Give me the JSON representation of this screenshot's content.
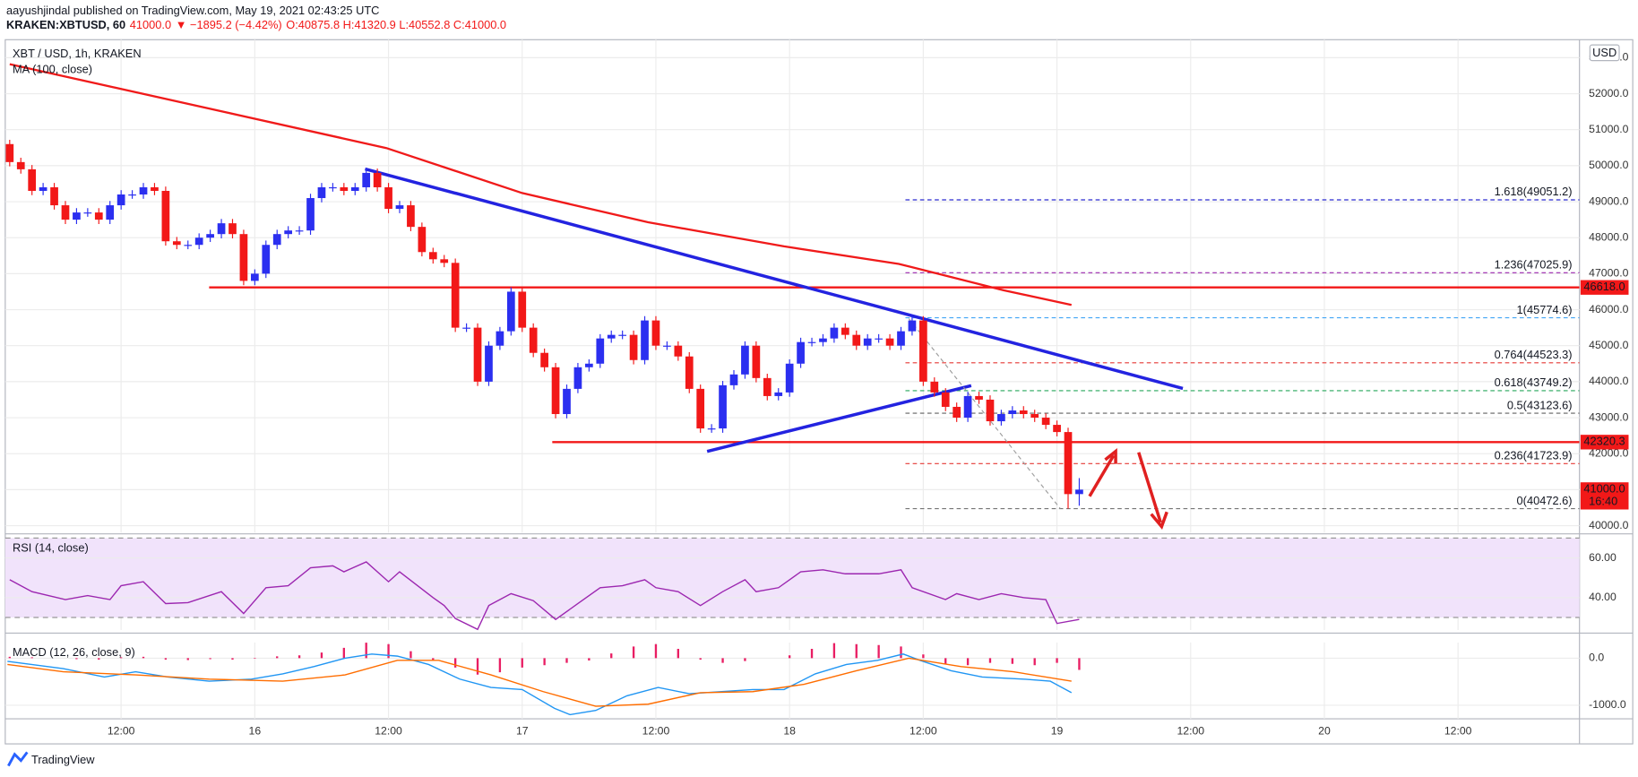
{
  "header": {
    "author_line": "aayushjindal published on TradingView.com, May 19, 2021 02:43:25 UTC",
    "symbol": "KRAKEN:XBTUSD, 60",
    "last": "41000.0",
    "change": "▼ −1895.2 (−4.42%)",
    "ohlc": "O:40875.8 H:41320.9 L:40552.8 C:41000.0"
  },
  "footer": {
    "brand": "TradingView"
  },
  "chart_data": [
    {
      "type": "candlestick",
      "title": "XBT / USD, 1h, KRAKEN",
      "currency": "USD",
      "up_color": "#2b2ff0",
      "down_color": "#f21818",
      "grid": true,
      "xlim": [
        -0.4,
        140.9
      ],
      "xticks": [
        {
          "value": 10,
          "label": "12:00"
        },
        {
          "value": 22,
          "label": "16"
        },
        {
          "value": 34,
          "label": "12:00"
        },
        {
          "value": 46,
          "label": "17"
        },
        {
          "value": 58,
          "label": "12:00"
        },
        {
          "value": 70,
          "label": "18"
        },
        {
          "value": 82,
          "label": "12:00"
        },
        {
          "value": 94,
          "label": "19"
        },
        {
          "value": 106,
          "label": "12:00"
        },
        {
          "value": 118,
          "label": "20"
        },
        {
          "value": 130,
          "label": "12:00"
        }
      ],
      "ylim": [
        39800,
        53500
      ],
      "yticks": [
        {
          "value": 40000,
          "label": "40000.0"
        },
        {
          "value": 41000,
          "label": "41000.0"
        },
        {
          "value": 42000,
          "label": "42000.0"
        },
        {
          "value": 43000,
          "label": "43000.0"
        },
        {
          "value": 44000,
          "label": "44000.0"
        },
        {
          "value": 45000,
          "label": "45000.0"
        },
        {
          "value": 46000,
          "label": "46000.0"
        },
        {
          "value": 47000,
          "label": "47000.0"
        },
        {
          "value": 48000,
          "label": "48000.0"
        },
        {
          "value": 49000,
          "label": "49000.0"
        },
        {
          "value": 50000,
          "label": "50000.0"
        },
        {
          "value": 51000,
          "label": "51000.0"
        },
        {
          "value": 52000,
          "label": "52000.0"
        },
        {
          "value": 53000,
          "label": "53000.0"
        }
      ],
      "candles": [
        [
          50600,
          50720,
          49980,
          50100
        ],
        [
          50100,
          50220,
          49780,
          49900
        ],
        [
          49900,
          50020,
          49180,
          49300
        ],
        [
          49300,
          49520,
          49180,
          49400
        ],
        [
          49400,
          49520,
          48780,
          48900
        ],
        [
          48900,
          49020,
          48380,
          48500
        ],
        [
          48500,
          48820,
          48380,
          48700
        ],
        [
          48700,
          48820,
          48580,
          48700
        ],
        [
          48700,
          48820,
          48380,
          48500
        ],
        [
          48500,
          49020,
          48380,
          48900
        ],
        [
          48900,
          49320,
          48780,
          49200
        ],
        [
          49200,
          49320,
          49080,
          49200
        ],
        [
          49200,
          49520,
          49080,
          49400
        ],
        [
          49400,
          49520,
          49180,
          49300
        ],
        [
          49300,
          49420,
          47780,
          47900
        ],
        [
          47900,
          48020,
          47680,
          47800
        ],
        [
          47800,
          47920,
          47680,
          47800
        ],
        [
          47800,
          48120,
          47680,
          48000
        ],
        [
          48000,
          48220,
          47880,
          48100
        ],
        [
          48100,
          48520,
          47980,
          48400
        ],
        [
          48400,
          48520,
          47980,
          48100
        ],
        [
          48100,
          48220,
          46680,
          46800
        ],
        [
          46800,
          47120,
          46680,
          47000
        ],
        [
          47000,
          47920,
          46880,
          47800
        ],
        [
          47800,
          48220,
          47680,
          48100
        ],
        [
          48100,
          48320,
          47980,
          48200
        ],
        [
          48200,
          48320,
          48080,
          48200
        ],
        [
          48200,
          49220,
          48080,
          49100
        ],
        [
          49100,
          49520,
          48980,
          49400
        ],
        [
          49400,
          49520,
          49280,
          49400
        ],
        [
          49400,
          49520,
          49180,
          49300
        ],
        [
          49300,
          49520,
          49180,
          49400
        ],
        [
          49400,
          49920,
          49280,
          49800
        ],
        [
          49800,
          49920,
          49280,
          49400
        ],
        [
          49400,
          49520,
          48680,
          48800
        ],
        [
          48800,
          49020,
          48680,
          48900
        ],
        [
          48900,
          49020,
          48180,
          48300
        ],
        [
          48300,
          48420,
          47480,
          47600
        ],
        [
          47600,
          47720,
          47280,
          47400
        ],
        [
          47400,
          47520,
          47180,
          47300
        ],
        [
          47300,
          47420,
          45380,
          45500
        ],
        [
          45500,
          45620,
          45380,
          45500
        ],
        [
          45500,
          45620,
          43880,
          44000
        ],
        [
          44000,
          45120,
          43880,
          45000
        ],
        [
          45000,
          45520,
          44880,
          45400
        ],
        [
          45400,
          46620,
          45280,
          46500
        ],
        [
          46500,
          46620,
          45380,
          45500
        ],
        [
          45500,
          45620,
          44680,
          44800
        ],
        [
          44800,
          44920,
          44280,
          44400
        ],
        [
          44400,
          44520,
          42980,
          43100
        ],
        [
          43100,
          43920,
          42980,
          43800
        ],
        [
          43800,
          44520,
          43680,
          44400
        ],
        [
          44400,
          44620,
          44280,
          44500
        ],
        [
          44500,
          45320,
          44380,
          45200
        ],
        [
          45200,
          45420,
          45080,
          45300
        ],
        [
          45300,
          45420,
          45180,
          45300
        ],
        [
          45300,
          45420,
          44480,
          44600
        ],
        [
          44600,
          45820,
          44480,
          45700
        ],
        [
          45700,
          45820,
          44880,
          45000
        ],
        [
          45000,
          45120,
          44880,
          45000
        ],
        [
          45000,
          45120,
          44580,
          44700
        ],
        [
          44700,
          44820,
          43680,
          43800
        ],
        [
          43800,
          43920,
          42580,
          42700
        ],
        [
          42700,
          42820,
          42580,
          42700
        ],
        [
          42700,
          44020,
          42580,
          43900
        ],
        [
          43900,
          44320,
          43780,
          44200
        ],
        [
          44200,
          45120,
          44080,
          45000
        ],
        [
          45000,
          45120,
          43980,
          44100
        ],
        [
          44100,
          44220,
          43480,
          43600
        ],
        [
          43600,
          43820,
          43480,
          43700
        ],
        [
          43700,
          44620,
          43580,
          44500
        ],
        [
          44500,
          45220,
          44380,
          45100
        ],
        [
          45100,
          45220,
          44980,
          45100
        ],
        [
          45100,
          45320,
          44980,
          45200
        ],
        [
          45200,
          45620,
          45080,
          45500
        ],
        [
          45500,
          45620,
          45180,
          45300
        ],
        [
          45300,
          45420,
          44880,
          45000
        ],
        [
          45000,
          45320,
          44880,
          45200
        ],
        [
          45200,
          45320,
          45080,
          45200
        ],
        [
          45200,
          45320,
          44880,
          45000
        ],
        [
          45000,
          45520,
          44880,
          45400
        ],
        [
          45400,
          45820,
          45280,
          45700
        ],
        [
          45700,
          45820,
          43880,
          44000
        ],
        [
          44000,
          44120,
          43580,
          43700
        ],
        [
          43700,
          43820,
          43180,
          43300
        ],
        [
          43300,
          43420,
          42880,
          43000
        ],
        [
          43000,
          43720,
          42880,
          43600
        ],
        [
          43600,
          43720,
          43380,
          43500
        ],
        [
          43500,
          43620,
          42780,
          42900
        ],
        [
          42900,
          43220,
          42780,
          43100
        ],
        [
          43100,
          43320,
          42980,
          43200
        ],
        [
          43200,
          43320,
          42980,
          43100
        ],
        [
          43100,
          43220,
          42880,
          43000
        ],
        [
          43000,
          43120,
          42680,
          42800
        ],
        [
          42800,
          42920,
          42480,
          42600
        ],
        [
          42600,
          42720,
          40473,
          40876
        ],
        [
          40876,
          41321,
          40553,
          41000
        ]
      ],
      "series": [
        {
          "name": "MA (100, close)",
          "color": "#f01a1a",
          "x": [
            0,
            33.8,
            46,
            57.3,
            69.5,
            79.8,
            89.2,
            95.3
          ],
          "values": [
            52820,
            50490,
            49240,
            48430,
            47760,
            47270,
            46540,
            46130
          ]
        }
      ],
      "trendlines": [
        {
          "color": "#2323e0",
          "x": [
            31.9,
            105.3
          ],
          "values": [
            49910,
            43810
          ]
        },
        {
          "color": "#2323e0",
          "x": [
            62.6,
            86.3
          ],
          "values": [
            42060,
            43890
          ]
        },
        {
          "color": "#9e9e9e",
          "dashed": true,
          "x": [
            80.7,
            94.3
          ],
          "values": [
            45750,
            40473
          ]
        }
      ],
      "levels": [
        {
          "label": "46618.0",
          "value": 46618,
          "x_start": 17.9,
          "color": "#f21818"
        },
        {
          "label": "42320.3",
          "value": 42320.3,
          "x_start": 48.7,
          "color": "#f21818"
        }
      ],
      "fib": {
        "x_start": 80.4,
        "levels": [
          {
            "label": "1.618(49051.2)",
            "value": 49051.2,
            "color": "#2a2ad0"
          },
          {
            "label": "1.236(47025.9)",
            "value": 47025.9,
            "color": "#9c27b0"
          },
          {
            "label": "1(45774.6)",
            "value": 45774.6,
            "color": "#42a5f5"
          },
          {
            "label": "0.764(44523.3)",
            "value": 44523.3,
            "color": "#e53935"
          },
          {
            "label": "0.618(43749.2)",
            "value": 43749.2,
            "color": "#26a65b"
          },
          {
            "label": "0.5(43123.6)",
            "value": 43123.6,
            "color": "#616161"
          },
          {
            "label": "0.236(41723.9)",
            "value": 41723.9,
            "color": "#e53935"
          },
          {
            "label": "0(40472.6)",
            "value": 40472.6,
            "color": "#757575"
          }
        ]
      },
      "last_price": {
        "value": 41000,
        "label": "41000.0",
        "countdown": "16:40",
        "color": "#f21818"
      }
    },
    {
      "type": "line",
      "title": "RSI (14, close)",
      "ylim": [
        23.7,
        70
      ],
      "yticks": [
        {
          "value": 40,
          "label": "40.00"
        },
        {
          "value": 60,
          "label": "60.00"
        }
      ],
      "band": [
        30,
        70
      ],
      "band_color": "#f1e3fb",
      "series": [
        {
          "color": "#9c27b0",
          "x": [
            0,
            2,
            5,
            7,
            9,
            10,
            12,
            14,
            16,
            19,
            21,
            23,
            25,
            27,
            29,
            30,
            32,
            34,
            35,
            38,
            39,
            40,
            42,
            43,
            45,
            47,
            49,
            51,
            53,
            55,
            57,
            58,
            60,
            62,
            64,
            66,
            67,
            69,
            71,
            73,
            75,
            78,
            80,
            81,
            84,
            85,
            87,
            89,
            91,
            93,
            94,
            96
          ],
          "values": [
            49,
            43,
            39,
            41,
            39,
            46,
            48,
            37,
            37.5,
            43,
            32,
            45,
            46,
            55,
            56,
            53,
            58,
            48,
            53,
            40,
            36,
            29.5,
            24,
            36,
            42,
            38.5,
            29,
            37,
            45,
            46,
            49,
            45,
            43,
            36,
            43,
            49,
            43,
            45,
            53,
            54,
            52,
            52,
            54,
            45,
            39,
            42,
            39,
            42,
            40,
            39,
            27,
            29
          ]
        }
      ]
    },
    {
      "type": "line",
      "title": "MACD (12, 26, close, 9)",
      "ylim": [
        -1289,
        333
      ],
      "yticks": [
        {
          "value": 0,
          "label": "0.0"
        },
        {
          "value": -1000,
          "label": "-1000.0"
        }
      ],
      "series": [
        {
          "color": "#2196f3",
          "x": [
            -0.2,
            4.8,
            8.5,
            11.3,
            14.2,
            17.9,
            21.7,
            24.5,
            27.3,
            30.1,
            32.5,
            34.8,
            37.6,
            40.4,
            43.2,
            46,
            48.9,
            50.3,
            52.6,
            55.4,
            58.2,
            61,
            63.9,
            66.7,
            69.5,
            72.3,
            75.1,
            77.9,
            80.2,
            81.7,
            84.5,
            87.3,
            91,
            93.4,
            95.3
          ],
          "values": [
            -67,
            -222,
            -400,
            -289,
            -400,
            -489,
            -444,
            -333,
            -178,
            0,
            89,
            44,
            -133,
            -444,
            -622,
            -667,
            -1067,
            -1200,
            -1111,
            -800,
            -622,
            -756,
            -711,
            -667,
            -667,
            -333,
            -133,
            -44,
            89,
            -44,
            -267,
            -400,
            -444,
            -489,
            -733
          ]
        },
        {
          "color": "#ff6d00",
          "x": [
            -0.2,
            4.8,
            11.3,
            17.9,
            24.5,
            30.1,
            34.8,
            38.5,
            43.2,
            47.9,
            52.6,
            57.3,
            62,
            66.7,
            71.3,
            76,
            80.7,
            85.4,
            90.1,
            95.3
          ],
          "values": [
            -133,
            -289,
            -356,
            -444,
            -489,
            -356,
            -44,
            -44,
            -356,
            -711,
            -1022,
            -978,
            -733,
            -711,
            -556,
            -267,
            0,
            -178,
            -289,
            -489
          ]
        }
      ],
      "histogram": {
        "color": "#e91e63",
        "x": [
          0,
          2,
          4,
          6,
          8,
          10,
          12,
          14,
          16,
          18,
          20,
          22,
          24,
          26,
          28,
          30,
          32,
          34,
          36,
          38,
          40,
          42,
          44,
          46,
          48,
          50,
          52,
          54,
          56,
          58,
          60,
          62,
          64,
          66,
          68,
          70,
          72,
          74,
          76,
          78,
          80,
          82,
          84,
          86,
          88,
          90,
          92,
          94,
          96
        ],
        "values": [
          30,
          20,
          0,
          -20,
          -30,
          20,
          30,
          -30,
          -40,
          -20,
          -30,
          -10,
          40,
          60,
          120,
          220,
          330,
          300,
          150,
          -50,
          -200,
          -350,
          -300,
          -200,
          -150,
          -100,
          -50,
          100,
          250,
          300,
          200,
          -30,
          -100,
          -60,
          0,
          60,
          200,
          320,
          300,
          280,
          250,
          80,
          -120,
          -150,
          -100,
          -120,
          -150,
          -100,
          -250
        ]
      }
    }
  ]
}
